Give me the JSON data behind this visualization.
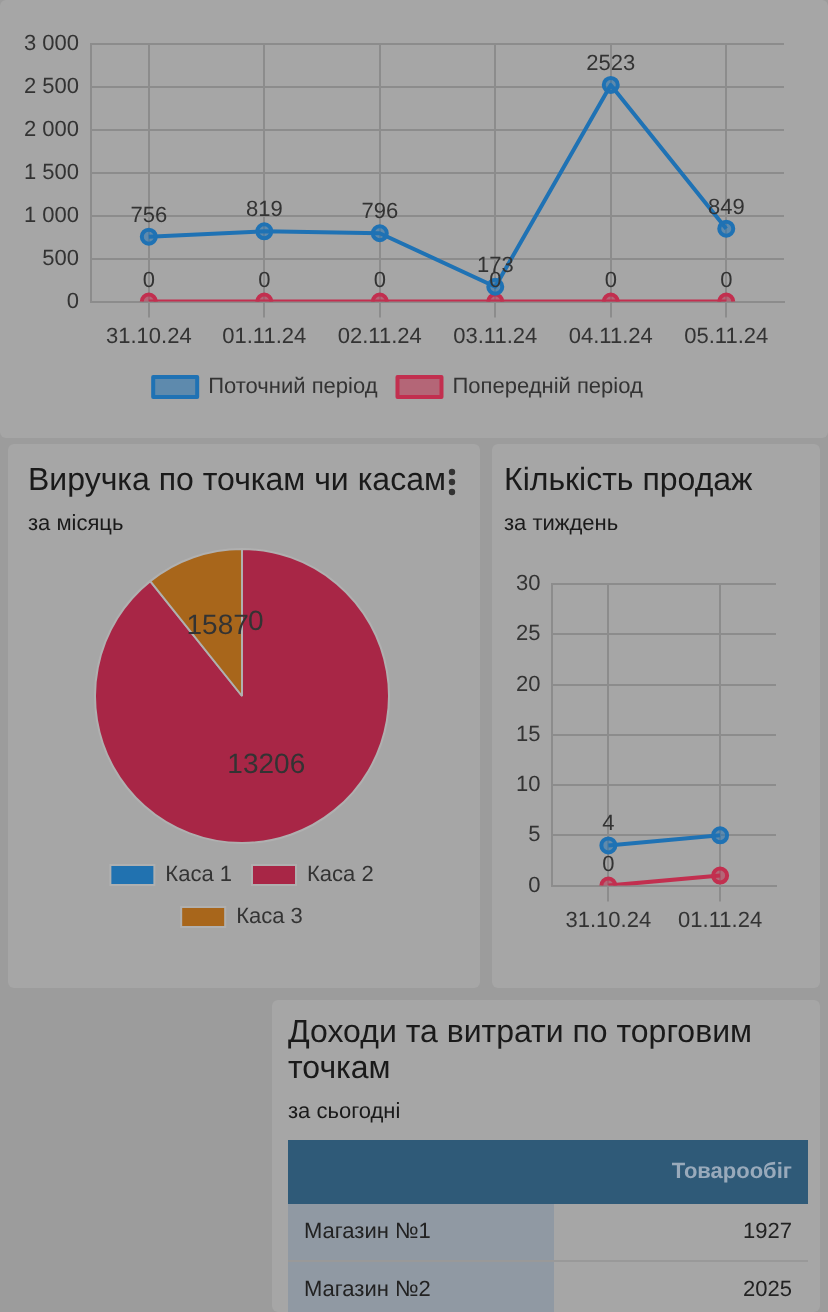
{
  "chart_data": [
    {
      "type": "line",
      "categories": [
        "31.10.24",
        "01.11.24",
        "02.11.24",
        "03.11.24",
        "04.11.24",
        "05.11.24"
      ],
      "series": [
        {
          "name": "Поточний період",
          "color": "#1f72b4",
          "values": [
            756,
            819,
            796,
            173,
            2523,
            849
          ]
        },
        {
          "name": "Попередній період",
          "color": "#c22f4f",
          "values": [
            0,
            0,
            0,
            0,
            0,
            0
          ]
        }
      ],
      "ylim": [
        0,
        3000
      ],
      "yticks": [
        0,
        500,
        {
          "value": 1000,
          "label": "1 000"
        },
        {
          "value": 1500,
          "label": "1 500"
        },
        {
          "value": 2000,
          "label": "2 000"
        },
        {
          "value": 2500,
          "label": "2 500"
        },
        {
          "value": 3000,
          "label": "3 000"
        }
      ],
      "grid": true,
      "legend": "bottom",
      "marker": "circle",
      "data_labels": true
    },
    {
      "type": "pie",
      "title": "Виручка по точкам чи касам",
      "subtitle": "за місяць",
      "categories": [
        "Каса 1",
        "Каса 2",
        "Каса 3"
      ],
      "values": [
        0,
        13206,
        1587
      ],
      "value_labels": [
        "0",
        "13206",
        "1587"
      ],
      "colors": [
        "#2172b0",
        "#a82646",
        "#a8661b"
      ],
      "legend": "bottom"
    },
    {
      "type": "line",
      "title": "Кількість продаж",
      "subtitle": "за тиждень",
      "categories": [
        "31.10.24",
        "01.11.24"
      ],
      "series": [
        {
          "color": "#1f72b4",
          "values": [
            4,
            5
          ],
          "value_labels": [
            "4",
            null
          ]
        },
        {
          "color": "#c22f4f",
          "values": [
            0,
            1
          ],
          "value_labels": [
            "0",
            null
          ]
        }
      ],
      "ylim": [
        0,
        30
      ],
      "yticks": [
        0,
        5,
        10,
        15,
        20,
        25,
        30
      ],
      "grid": true,
      "marker": "circle"
    },
    {
      "type": "other",
      "title": "Доходи та витрати по торговим точкам",
      "subtitle": "за сьогодні",
      "annotations": [
        "Товарообіг",
        "Магазин №1",
        "1927",
        "Магазин №2",
        "2025"
      ]
    }
  ]
}
